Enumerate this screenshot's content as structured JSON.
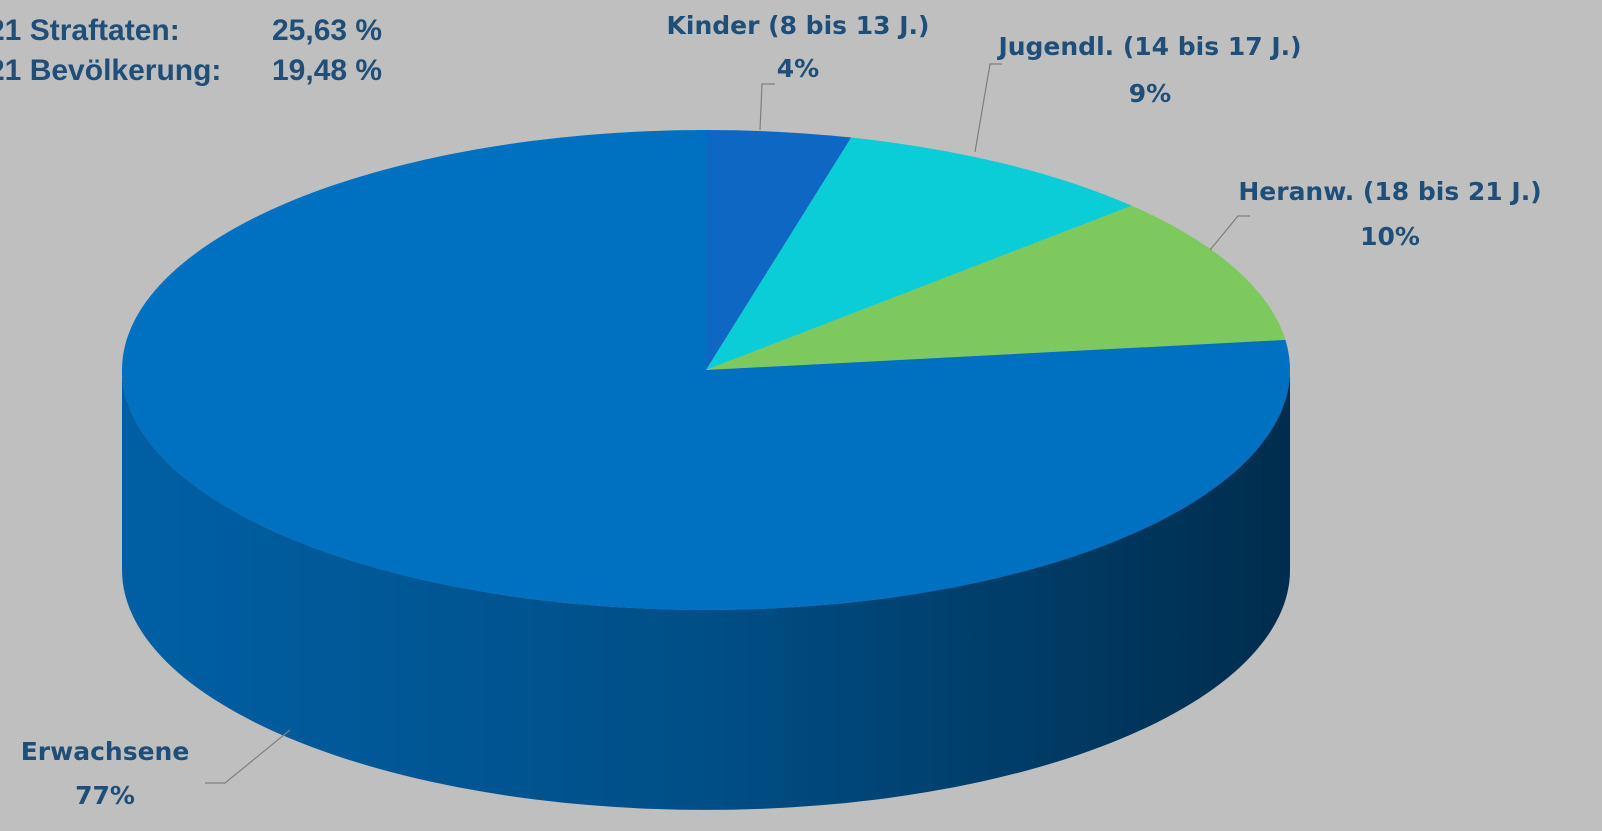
{
  "chart_data": {
    "type": "pie",
    "annotations": [
      "21 Straftaten:",
      "25,63 %",
      "21 Bevölkerung:",
      "19,48 %"
    ],
    "categories": [
      "Kinder (8 bis 13 J.)",
      "Jugendl. (14 bis 17 J.)",
      "Heranw. (18 bis 21 J.)",
      "Erwachsene"
    ],
    "values": [
      4,
      9,
      10,
      77
    ],
    "value_labels": [
      "4%",
      "9%",
      "10%",
      "77%"
    ],
    "colors": [
      "#0f67c4",
      "#0bcdd8",
      "#7dc95e",
      "#0070c0"
    ]
  }
}
